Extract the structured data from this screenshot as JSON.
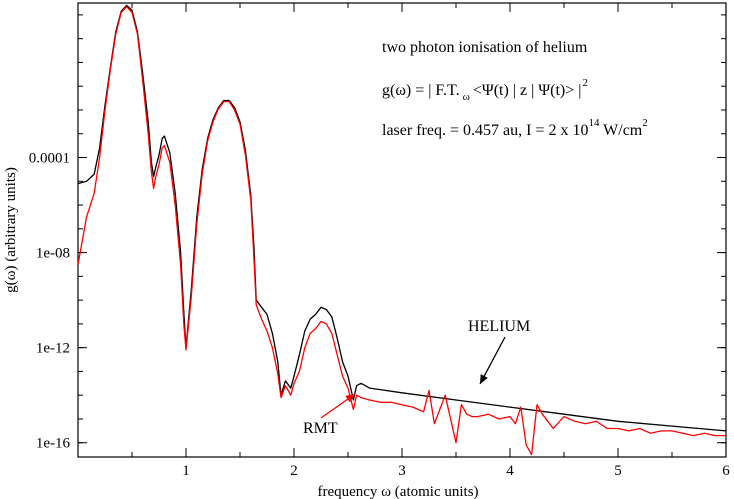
{
  "chart_data": {
    "type": "line",
    "xlabel": "frequency ω (atomic units)",
    "ylabel": "g(ω) (arbitrary units)",
    "xlim": [
      0,
      6
    ],
    "ylim_log10": [
      -16.6,
      2.5
    ],
    "y_scale": "log",
    "grid": false,
    "x_ticks": [
      1,
      2,
      3,
      4,
      5,
      6
    ],
    "x_tick_labels": [
      "1",
      "2",
      "3",
      "4",
      "5",
      "6"
    ],
    "y_ticks_log10": [
      -4,
      -8,
      -12,
      -16
    ],
    "y_tick_labels": [
      "0.0001",
      "1e-08",
      "1e-12",
      "1e-16"
    ],
    "annotations": {
      "line1": "two photon ionisation of helium",
      "line2_main": "g(ω) = | F.T.",
      "line2_sub": "ω",
      "line2_rest": "<Ψ(t) | z | Ψ(t)> |",
      "line2_sup": "2",
      "line3_main": "laser freq. = 0.457 au, I = 2 x 10",
      "line3_sup1": "14",
      "line3_rest": " W/cm",
      "line3_sup2": "2",
      "helium_label": "HELIUM",
      "rmt_label": "RMT"
    },
    "series": [
      {
        "name": "HELIUM",
        "color": "#000000",
        "x": [
          0.0,
          0.08,
          0.15,
          0.2,
          0.25,
          0.3,
          0.35,
          0.4,
          0.45,
          0.5,
          0.55,
          0.6,
          0.65,
          0.68,
          0.7,
          0.72,
          0.75,
          0.78,
          0.8,
          0.85,
          0.9,
          0.95,
          0.98,
          1.0,
          1.05,
          1.1,
          1.15,
          1.2,
          1.25,
          1.3,
          1.35,
          1.4,
          1.45,
          1.5,
          1.55,
          1.6,
          1.63,
          1.65,
          1.7,
          1.75,
          1.8,
          1.85,
          1.88,
          1.92,
          1.97,
          2.0,
          2.05,
          2.1,
          2.15,
          2.2,
          2.25,
          2.3,
          2.35,
          2.4,
          2.45,
          2.5,
          2.55,
          2.58,
          2.62,
          2.7,
          3.0,
          3.5,
          4.0,
          4.5,
          5.0,
          5.5,
          6.0
        ],
        "y_log10": [
          -5.1,
          -5.0,
          -4.7,
          -3.6,
          -1.8,
          -0.2,
          1.3,
          2.15,
          2.4,
          2.2,
          1.3,
          -0.5,
          -2.5,
          -4.2,
          -4.8,
          -4.4,
          -3.9,
          -3.2,
          -3.1,
          -3.8,
          -5.5,
          -8.0,
          -10.5,
          -12.0,
          -9.5,
          -6.5,
          -4.5,
          -3.2,
          -2.4,
          -1.9,
          -1.6,
          -1.6,
          -1.9,
          -2.5,
          -3.7,
          -5.6,
          -7.8,
          -10.0,
          -10.3,
          -10.6,
          -11.4,
          -12.6,
          -14.0,
          -13.4,
          -13.7,
          -13.2,
          -12.3,
          -11.3,
          -10.8,
          -10.6,
          -10.3,
          -10.4,
          -10.7,
          -11.6,
          -12.6,
          -13.2,
          -14.2,
          -13.6,
          -13.5,
          -13.7,
          -13.9,
          -14.2,
          -14.5,
          -14.8,
          -15.1,
          -15.3,
          -15.5
        ]
      },
      {
        "name": "RMT",
        "color": "#ff0000",
        "x": [
          0.0,
          0.08,
          0.15,
          0.2,
          0.25,
          0.3,
          0.35,
          0.4,
          0.45,
          0.5,
          0.55,
          0.6,
          0.65,
          0.68,
          0.7,
          0.72,
          0.75,
          0.78,
          0.8,
          0.85,
          0.9,
          0.95,
          0.98,
          1.0,
          1.05,
          1.1,
          1.15,
          1.2,
          1.25,
          1.3,
          1.35,
          1.4,
          1.45,
          1.5,
          1.55,
          1.6,
          1.63,
          1.65,
          1.7,
          1.75,
          1.8,
          1.85,
          1.88,
          1.92,
          1.97,
          2.0,
          2.05,
          2.1,
          2.15,
          2.2,
          2.25,
          2.3,
          2.35,
          2.4,
          2.45,
          2.5,
          2.55,
          2.58,
          2.62,
          2.7,
          2.8,
          2.9,
          3.0,
          3.1,
          3.2,
          3.25,
          3.3,
          3.4,
          3.5,
          3.55,
          3.6,
          3.65,
          3.7,
          3.8,
          3.9,
          4.0,
          4.05,
          4.1,
          4.15,
          4.2,
          4.25,
          4.3,
          4.4,
          4.5,
          4.6,
          4.7,
          4.8,
          4.9,
          5.0,
          5.1,
          5.2,
          5.3,
          5.4,
          5.5,
          5.6,
          5.7,
          5.8,
          5.9,
          6.0
        ],
        "y_log10": [
          -8.5,
          -6.5,
          -5.5,
          -4.0,
          -2.0,
          -0.3,
          1.2,
          2.1,
          2.35,
          2.1,
          1.2,
          -0.8,
          -3.0,
          -4.6,
          -5.3,
          -4.8,
          -4.3,
          -3.6,
          -3.5,
          -4.2,
          -6.0,
          -8.5,
          -11.0,
          -12.1,
          -9.8,
          -6.8,
          -4.7,
          -3.3,
          -2.5,
          -1.95,
          -1.65,
          -1.65,
          -2.0,
          -2.6,
          -3.9,
          -5.8,
          -8.3,
          -10.2,
          -10.8,
          -11.3,
          -12.0,
          -13.1,
          -14.1,
          -13.6,
          -14.0,
          -13.5,
          -13.0,
          -12.0,
          -11.4,
          -11.2,
          -10.9,
          -11.0,
          -11.4,
          -12.3,
          -13.2,
          -13.7,
          -14.6,
          -14.0,
          -14.1,
          -14.2,
          -14.3,
          -14.3,
          -14.4,
          -14.5,
          -14.7,
          -13.8,
          -15.2,
          -14.0,
          -16.0,
          -14.4,
          -14.8,
          -14.9,
          -14.9,
          -14.8,
          -15.0,
          -14.9,
          -15.2,
          -14.5,
          -16.1,
          -16.5,
          -14.4,
          -14.8,
          -15.4,
          -14.9,
          -15.1,
          -15.2,
          -15.1,
          -15.4,
          -15.4,
          -15.5,
          -15.4,
          -15.6,
          -15.5,
          -15.5,
          -15.6,
          -15.7,
          -15.6,
          -15.7,
          -15.7
        ]
      }
    ]
  }
}
